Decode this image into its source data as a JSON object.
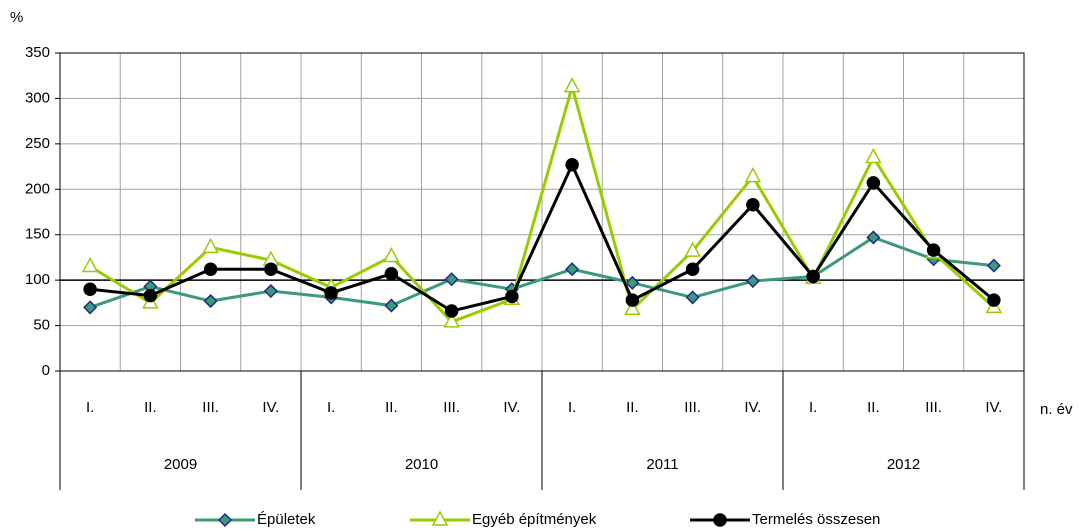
{
  "chart_data": {
    "type": "line",
    "y_unit": "%",
    "x_label": "n. év",
    "categories": [
      "I.",
      "II.",
      "III.",
      "IV.",
      "I.",
      "II.",
      "III.",
      "IV.",
      "I.",
      "II.",
      "III.",
      "IV.",
      "I.",
      "II.",
      "III.",
      "IV."
    ],
    "groups": [
      "2009",
      "2010",
      "2011",
      "2012"
    ],
    "series": [
      {
        "name": "Épületek",
        "color": "#3a9a7a",
        "marker": "diamond",
        "marker_fill": "#3a9a7a",
        "marker_stroke": "#1f2a8a",
        "values": [
          70,
          93,
          77,
          88,
          81,
          72,
          101,
          90,
          112,
          97,
          81,
          99,
          104,
          147,
          123,
          116
        ]
      },
      {
        "name": "Egyéb építmények",
        "color": "#99cc00",
        "marker": "triangle",
        "marker_fill": "#ffffff",
        "marker_stroke": "#99cc00",
        "values": [
          115,
          75,
          136,
          122,
          92,
          126,
          54,
          79,
          313,
          68,
          132,
          214,
          102,
          235,
          130,
          70
        ]
      },
      {
        "name": "Termelés összesen",
        "color": "#000000",
        "marker": "circle",
        "marker_fill": "#000000",
        "marker_stroke": "#000000",
        "values": [
          90,
          83,
          112,
          112,
          86,
          107,
          66,
          82,
          227,
          78,
          112,
          183,
          104,
          207,
          133,
          78
        ]
      }
    ],
    "ylim": [
      0,
      350
    ],
    "yticks": [
      0,
      50,
      100,
      150,
      200,
      250,
      300,
      350
    ],
    "reference_line": 100,
    "grid": true,
    "legend": "bottom"
  }
}
